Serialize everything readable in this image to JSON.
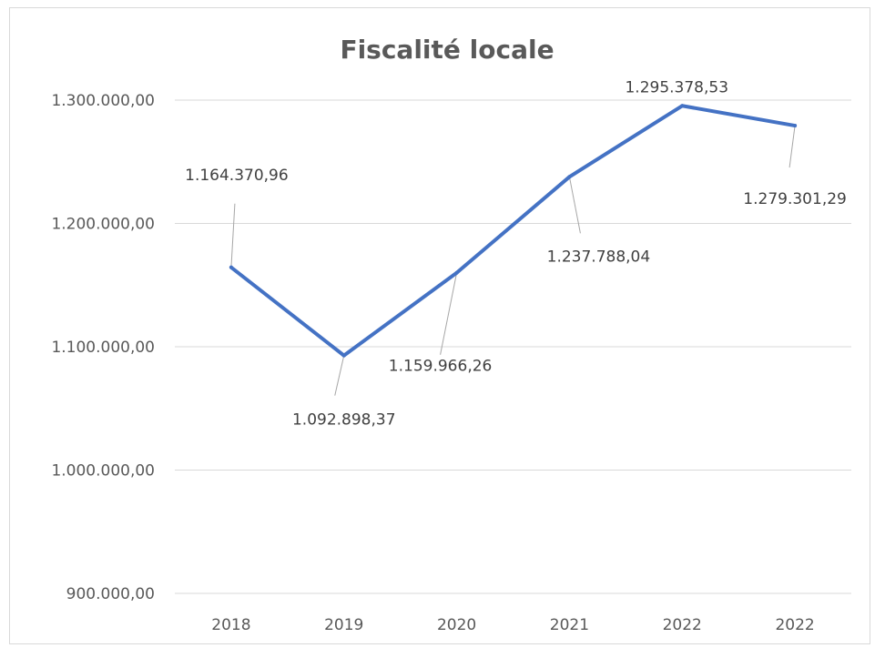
{
  "chart_data": {
    "type": "line",
    "title": "Fiscalité locale",
    "categories": [
      "2018",
      "2019",
      "2020",
      "2021",
      "2022",
      "2022"
    ],
    "series": [
      {
        "values": [
          1164370.96,
          1092898.37,
          1159966.26,
          1237788.04,
          1295378.53,
          1279301.29
        ]
      }
    ],
    "data_labels": [
      "1.164.370,96",
      "1.092.898,37",
      "1.159.966,26",
      "1.237.788,04",
      "1.295.378,53",
      "1.279.301,29"
    ],
    "y_ticks": [
      900000,
      1000000,
      1100000,
      1200000,
      1300000
    ],
    "y_tick_labels": [
      "900.000,00",
      "1.000.000,00",
      "1.100.000,00",
      "1.200.000,00",
      "1.300.000,00"
    ],
    "ylim": [
      900000,
      1300000
    ],
    "grid": true,
    "legend": "none",
    "line_color": "#4472c4",
    "grid_color": "#d9d9d9",
    "leader_color": "#a6a6a6"
  }
}
